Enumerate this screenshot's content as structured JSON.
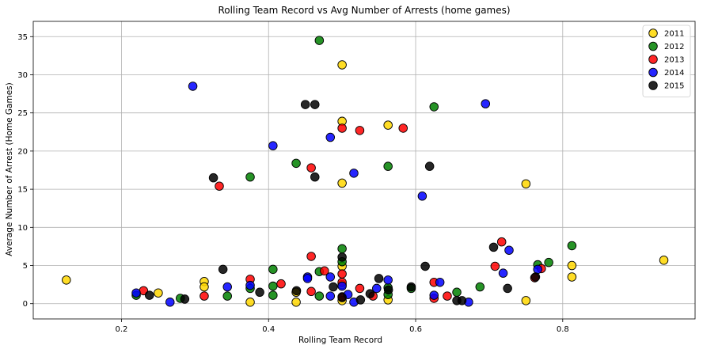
{
  "chart_data": {
    "type": "scatter",
    "title": "Rolling Team Record vs Avg Number of Arrests (home games)",
    "xlabel": "Rolling Team Record",
    "ylabel": "Average Number of Arrest (Home Games)",
    "xlim": [
      0.08,
      0.98
    ],
    "ylim": [
      -2,
      37
    ],
    "xticks": [
      0.2,
      0.4,
      0.6,
      0.8
    ],
    "xtick_labels": [
      "0.2",
      "0.4",
      "0.6",
      "0.8"
    ],
    "yticks": [
      0,
      5,
      10,
      15,
      20,
      25,
      30,
      35
    ],
    "ytick_labels": [
      "0",
      "5",
      "10",
      "15",
      "20",
      "25",
      "30",
      "35"
    ],
    "grid": true,
    "legend_position": "top-right",
    "series": [
      {
        "name": "2011",
        "color": "#FFD700",
        "points": [
          [
            0.125,
            3.1
          ],
          [
            0.25,
            1.4
          ],
          [
            0.3125,
            2.9
          ],
          [
            0.3125,
            2.2
          ],
          [
            0.375,
            0.2
          ],
          [
            0.4375,
            0.2
          ],
          [
            0.4375,
            1.5
          ],
          [
            0.5,
            31.3
          ],
          [
            0.5,
            23.9
          ],
          [
            0.5,
            15.8
          ],
          [
            0.5,
            0.4
          ],
          [
            0.5,
            4.9
          ],
          [
            0.5,
            2.5
          ],
          [
            0.5625,
            23.4
          ],
          [
            0.5625,
            0.5
          ],
          [
            0.75,
            15.7
          ],
          [
            0.75,
            0.4
          ],
          [
            0.8125,
            5.0
          ],
          [
            0.8125,
            3.5
          ],
          [
            0.9375,
            5.7
          ]
        ]
      },
      {
        "name": "2012",
        "color": "#008000",
        "points": [
          [
            0.22,
            1.1
          ],
          [
            0.28,
            0.7
          ],
          [
            0.344,
            1.0
          ],
          [
            0.375,
            16.6
          ],
          [
            0.375,
            2.0
          ],
          [
            0.406,
            2.3
          ],
          [
            0.406,
            4.5
          ],
          [
            0.406,
            1.1
          ],
          [
            0.4375,
            18.4
          ],
          [
            0.469,
            34.5
          ],
          [
            0.469,
            4.2
          ],
          [
            0.469,
            1.0
          ],
          [
            0.5,
            7.2
          ],
          [
            0.5,
            5.5
          ],
          [
            0.5625,
            18.0
          ],
          [
            0.5625,
            2.1
          ],
          [
            0.5625,
            1.2
          ],
          [
            0.594,
            2.0
          ],
          [
            0.625,
            25.8
          ],
          [
            0.656,
            1.5
          ],
          [
            0.6875,
            2.2
          ],
          [
            0.766,
            5.1
          ],
          [
            0.781,
            5.4
          ],
          [
            0.8125,
            7.6
          ]
        ]
      },
      {
        "name": "2013",
        "color": "#FF0000",
        "points": [
          [
            0.23,
            1.7
          ],
          [
            0.3125,
            1.0
          ],
          [
            0.333,
            15.4
          ],
          [
            0.375,
            3.2
          ],
          [
            0.417,
            2.6
          ],
          [
            0.458,
            17.8
          ],
          [
            0.458,
            6.2
          ],
          [
            0.458,
            1.6
          ],
          [
            0.476,
            4.3
          ],
          [
            0.5,
            23.0
          ],
          [
            0.5,
            2.8
          ],
          [
            0.5,
            3.9
          ],
          [
            0.5,
            0.9
          ],
          [
            0.524,
            22.7
          ],
          [
            0.524,
            2.0
          ],
          [
            0.542,
            1.0
          ],
          [
            0.583,
            23.0
          ],
          [
            0.625,
            2.8
          ],
          [
            0.625,
            0.7
          ],
          [
            0.643,
            1.0
          ],
          [
            0.708,
            4.9
          ],
          [
            0.717,
            8.1
          ],
          [
            0.762,
            3.4
          ],
          [
            0.771,
            4.6
          ]
        ]
      },
      {
        "name": "2014",
        "color": "#0000FF",
        "points": [
          [
            0.22,
            1.4
          ],
          [
            0.266,
            0.2
          ],
          [
            0.297,
            28.5
          ],
          [
            0.344,
            2.2
          ],
          [
            0.375,
            2.4
          ],
          [
            0.406,
            20.7
          ],
          [
            0.453,
            3.5
          ],
          [
            0.453,
            3.3
          ],
          [
            0.484,
            21.8
          ],
          [
            0.484,
            3.5
          ],
          [
            0.484,
            1.0
          ],
          [
            0.5,
            2.3
          ],
          [
            0.508,
            1.2
          ],
          [
            0.516,
            17.1
          ],
          [
            0.516,
            0.2
          ],
          [
            0.547,
            2.0
          ],
          [
            0.5625,
            3.1
          ],
          [
            0.609,
            14.1
          ],
          [
            0.625,
            1.1
          ],
          [
            0.633,
            2.8
          ],
          [
            0.672,
            0.2
          ],
          [
            0.695,
            26.2
          ],
          [
            0.719,
            4.0
          ],
          [
            0.727,
            7.0
          ],
          [
            0.766,
            4.5
          ]
        ]
      },
      {
        "name": "2015",
        "color": "#000000",
        "points": [
          [
            0.238,
            1.1
          ],
          [
            0.286,
            0.6
          ],
          [
            0.325,
            16.5
          ],
          [
            0.338,
            4.5
          ],
          [
            0.388,
            1.5
          ],
          [
            0.438,
            1.7
          ],
          [
            0.45,
            26.1
          ],
          [
            0.463,
            26.1
          ],
          [
            0.463,
            16.6
          ],
          [
            0.488,
            2.2
          ],
          [
            0.5,
            6.1
          ],
          [
            0.5,
            0.8
          ],
          [
            0.525,
            0.5
          ],
          [
            0.538,
            1.3
          ],
          [
            0.55,
            3.3
          ],
          [
            0.563,
            1.8
          ],
          [
            0.594,
            2.2
          ],
          [
            0.613,
            4.9
          ],
          [
            0.619,
            18.0
          ],
          [
            0.656,
            0.4
          ],
          [
            0.663,
            0.4
          ],
          [
            0.706,
            7.4
          ],
          [
            0.725,
            2.0
          ],
          [
            0.763,
            3.5
          ]
        ]
      }
    ]
  }
}
